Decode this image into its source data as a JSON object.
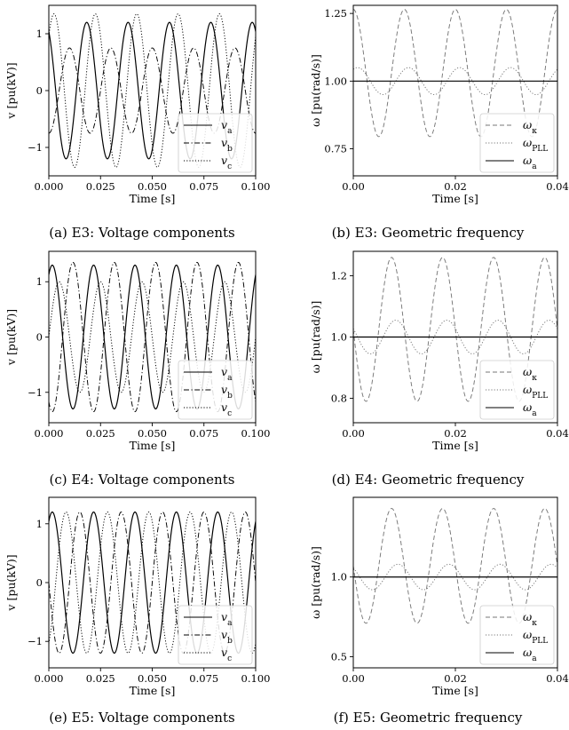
{
  "figures": [
    {
      "caption": "(a) E3: Voltage components",
      "kind": "voltage"
    },
    {
      "caption": "(b) E3: Geometric frequency",
      "kind": "frequency"
    },
    {
      "caption": "(c) E4: Voltage components",
      "kind": "voltage"
    },
    {
      "caption": "(d) E4: Geometric frequency",
      "kind": "frequency"
    },
    {
      "caption": "(e) E5: Voltage components",
      "kind": "voltage"
    },
    {
      "caption": "(f) E5: Geometric frequency",
      "kind": "frequency"
    }
  ],
  "chart_data": [
    {
      "type": "line",
      "title": "",
      "xlabel": "Time [s]",
      "ylabel": "v [pu(kV)]",
      "xlim": [
        0,
        0.1
      ],
      "ylim": [
        -1.5,
        1.5
      ],
      "xticks": [
        "0.000",
        "0.025",
        "0.050",
        "0.075",
        "0.100"
      ],
      "yticks": [
        "−1",
        "0",
        "1"
      ],
      "legend_position": "lower-right",
      "series": [
        {
          "name": "v_a",
          "style": "solid",
          "amplitude": 1.2,
          "frequency_hz": 50,
          "phase_deg": 120
        },
        {
          "name": "v_b",
          "style": "dashdot",
          "amplitude": 0.75,
          "frequency_hz": 50,
          "phase_deg": 270
        },
        {
          "name": "v_c",
          "style": "dotted",
          "amplitude": 1.35,
          "frequency_hz": 50,
          "phase_deg": 45
        }
      ]
    },
    {
      "type": "line",
      "title": "",
      "xlabel": "Time [s]",
      "ylabel": "ω [pu(rad/s)]",
      "xlim": [
        0,
        0.04
      ],
      "ylim": [
        0.65,
        1.28
      ],
      "xticks": [
        "0.00",
        "0.02",
        "0.04"
      ],
      "yticks": [
        "0.75",
        "1.00",
        "1.25"
      ],
      "legend_position": "lower-right",
      "series": [
        {
          "name": "ω_κ",
          "style": "dashed",
          "mean": 1.03,
          "amplitude": 0.235,
          "frequency_hz": 100,
          "phase_deg": 90
        },
        {
          "name": "ω_PLL",
          "style": "dotted",
          "mean": 1.0,
          "amplitude": 0.05,
          "frequency_hz": 100,
          "phase_deg": 60
        },
        {
          "name": "ω_a",
          "style": "solid",
          "value": 1.0
        }
      ]
    },
    {
      "type": "line",
      "title": "",
      "xlabel": "Time [s]",
      "ylabel": "v [pu(kV)]",
      "xlim": [
        0,
        0.1
      ],
      "ylim": [
        -1.55,
        1.55
      ],
      "xticks": [
        "0.000",
        "0.025",
        "0.050",
        "0.075",
        "0.100"
      ],
      "yticks": [
        "−1",
        "0",
        "1"
      ],
      "legend_position": "lower-right",
      "series": [
        {
          "name": "v_a",
          "style": "solid",
          "amplitude": 1.3,
          "frequency_hz": 50,
          "phase_deg": 60
        },
        {
          "name": "v_b",
          "style": "dashdot",
          "amplitude": 1.35,
          "frequency_hz": 50,
          "phase_deg": 240
        },
        {
          "name": "v_c",
          "style": "dotted",
          "amplitude": 1.0,
          "frequency_hz": 50,
          "phase_deg": 0
        }
      ]
    },
    {
      "type": "line",
      "title": "",
      "xlabel": "Time [s]",
      "ylabel": "ω [pu(rad/s)]",
      "xlim": [
        0,
        0.04
      ],
      "ylim": [
        0.72,
        1.28
      ],
      "xticks": [
        "0.00",
        "0.02",
        "0.04"
      ],
      "yticks": [
        "0.8",
        "1.0",
        "1.2"
      ],
      "legend_position": "lower-right",
      "series": [
        {
          "name": "ω_κ",
          "style": "dashed",
          "mean": 1.025,
          "amplitude": 0.235,
          "frequency_hz": 100,
          "phase_deg": 180
        },
        {
          "name": "ω_PLL",
          "style": "dotted",
          "mean": 1.0,
          "amplitude": 0.055,
          "frequency_hz": 100,
          "phase_deg": 150
        },
        {
          "name": "ω_a",
          "style": "solid",
          "value": 1.0
        }
      ]
    },
    {
      "type": "line",
      "title": "",
      "xlabel": "Time [s]",
      "ylabel": "v [pu(kV)]",
      "xlim": [
        0,
        0.1
      ],
      "ylim": [
        -1.45,
        1.45
      ],
      "xticks": [
        "0.000",
        "0.025",
        "0.050",
        "0.075",
        "0.100"
      ],
      "yticks": [
        "−1",
        "0",
        "1"
      ],
      "legend_position": "lower-right",
      "series": [
        {
          "name": "v_a",
          "style": "solid",
          "amplitude": 1.2,
          "frequency_hz": 50,
          "phase_deg": 60
        },
        {
          "name": "v_b",
          "style": "dashdot",
          "amplitude": 1.2,
          "frequency_hz": 50,
          "phase_deg": 180
        },
        {
          "name": "v_c",
          "style": "dotted",
          "amplitude": 1.2,
          "frequency_hz": 50,
          "phase_deg": 300
        }
      ]
    },
    {
      "type": "line",
      "title": "",
      "xlabel": "Time [s]",
      "ylabel": "ω [pu(rad/s)]",
      "xlim": [
        0,
        0.04
      ],
      "ylim": [
        0.43,
        1.5
      ],
      "xticks": [
        "0.00",
        "0.02",
        "0.04"
      ],
      "yticks": [
        "0.5",
        "1.0"
      ],
      "legend_position": "lower-right",
      "series": [
        {
          "name": "ω_κ",
          "style": "dashed",
          "mean": 1.07,
          "amplitude": 0.36,
          "frequency_hz": 100,
          "phase_deg": 180
        },
        {
          "name": "ω_PLL",
          "style": "dotted",
          "mean": 1.0,
          "amplitude": 0.08,
          "frequency_hz": 100,
          "phase_deg": 135
        },
        {
          "name": "ω_a",
          "style": "solid",
          "value": 1.0
        }
      ]
    }
  ]
}
